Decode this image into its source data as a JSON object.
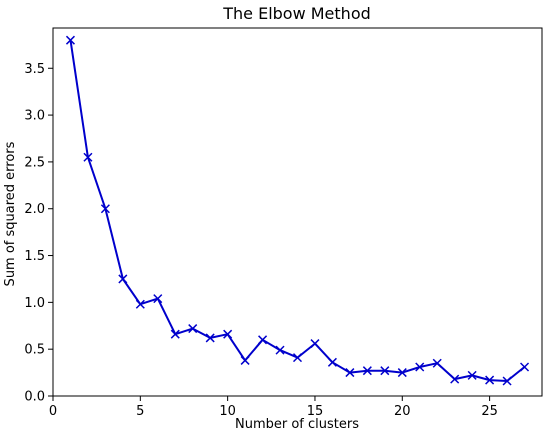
{
  "chart_data": {
    "type": "line",
    "title": "The Elbow Method",
    "xlabel": "Number of clusters",
    "ylabel": "Sum of squared errors",
    "xlim": [
      0,
      28
    ],
    "ylim": [
      0,
      3.93
    ],
    "xticks": [
      0,
      5,
      10,
      15,
      20,
      25
    ],
    "yticks": [
      0.0,
      0.5,
      1.0,
      1.5,
      2.0,
      2.5,
      3.0,
      3.5
    ],
    "ytick_labels": [
      "0.0",
      "0.5",
      "1.0",
      "1.5",
      "2.0",
      "2.5",
      "3.0",
      "3.5"
    ],
    "grid": false,
    "series": [
      {
        "color": "#0000cc",
        "marker": "x",
        "x": [
          1,
          2,
          3,
          4,
          5,
          6,
          7,
          8,
          9,
          10,
          11,
          12,
          13,
          14,
          15,
          16,
          17,
          18,
          19,
          20,
          21,
          22,
          23,
          24,
          25,
          26,
          27
        ],
        "y": [
          3.8,
          2.55,
          2.0,
          1.25,
          0.98,
          1.04,
          0.66,
          0.72,
          0.62,
          0.66,
          0.38,
          0.6,
          0.49,
          0.41,
          0.56,
          0.36,
          0.25,
          0.27,
          0.27,
          0.25,
          0.31,
          0.35,
          0.18,
          0.22,
          0.17,
          0.16,
          0.31
        ]
      }
    ]
  }
}
